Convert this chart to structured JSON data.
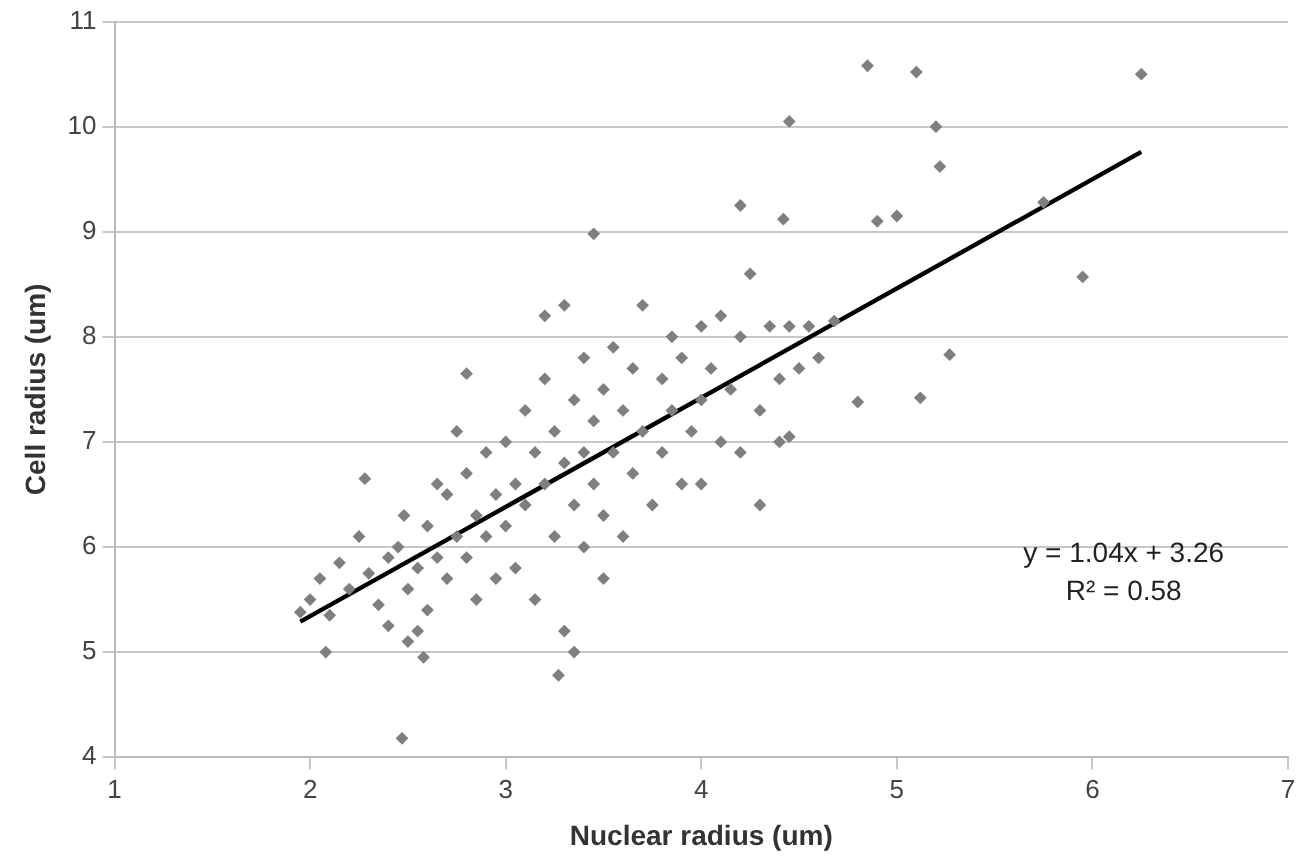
{
  "chart_data": {
    "type": "scatter",
    "xlabel": "Nuclear radius (um)",
    "ylabel": "Cell radius (um)",
    "xlim": [
      1,
      7
    ],
    "ylim": [
      4,
      11
    ],
    "xticks": [
      1,
      2,
      3,
      4,
      5,
      6,
      7
    ],
    "yticks": [
      4,
      5,
      6,
      7,
      8,
      9,
      10,
      11
    ],
    "grid": "y",
    "legend": false,
    "marker": "diamond",
    "annotations": [
      "y = 1.04x + 3.26",
      "R² = 0.58"
    ],
    "series": [
      {
        "color": "#7f7f7f",
        "x": [
          2.47,
          3.27,
          3.45,
          4.85,
          5.1,
          6.25,
          4.45,
          5.2,
          5.22,
          4.2,
          4.9,
          5.0,
          5.75,
          5.95,
          4.42,
          4.8,
          5.12,
          5.27,
          2.28,
          2.08,
          1.95,
          2.0,
          2.05,
          2.1,
          2.15,
          2.2,
          2.25,
          2.3,
          2.35,
          2.4,
          2.4,
          2.45,
          2.5,
          2.5,
          2.48,
          2.55,
          2.6,
          2.6,
          2.65,
          2.7,
          2.7,
          2.75,
          2.75,
          2.8,
          2.8,
          2.85,
          2.85,
          2.9,
          2.9,
          2.95,
          2.95,
          2.55,
          2.58,
          2.65,
          2.8,
          3.0,
          3.0,
          3.05,
          3.05,
          3.1,
          3.1,
          3.15,
          3.15,
          3.2,
          3.2,
          3.25,
          3.25,
          3.3,
          3.3,
          3.3,
          3.35,
          3.35,
          3.4,
          3.4,
          3.4,
          3.45,
          3.45,
          3.5,
          3.5,
          3.5,
          3.2,
          3.35,
          3.55,
          3.55,
          3.6,
          3.6,
          3.65,
          3.65,
          3.7,
          3.7,
          3.75,
          3.8,
          3.8,
          3.85,
          3.85,
          3.9,
          3.9,
          3.95,
          4.0,
          4.0,
          4.0,
          4.05,
          4.1,
          4.1,
          4.15,
          4.2,
          4.2,
          4.25,
          4.3,
          4.3,
          4.35,
          4.4,
          4.4,
          4.45,
          4.5,
          4.55,
          4.6,
          4.68,
          4.45
        ],
        "values": [
          4.18,
          4.78,
          8.98,
          10.58,
          10.52,
          10.5,
          10.05,
          10.0,
          9.62,
          9.25,
          9.1,
          9.15,
          9.28,
          8.57,
          9.12,
          7.38,
          7.42,
          7.83,
          6.65,
          5.0,
          5.38,
          5.5,
          5.7,
          5.35,
          5.85,
          5.6,
          6.1,
          5.75,
          5.45,
          5.9,
          5.25,
          6.0,
          5.6,
          5.1,
          6.3,
          5.8,
          6.2,
          5.4,
          5.9,
          6.5,
          5.7,
          6.1,
          7.1,
          6.7,
          5.9,
          6.3,
          5.5,
          6.9,
          6.1,
          6.5,
          5.7,
          5.2,
          4.95,
          6.6,
          7.65,
          7.0,
          6.2,
          6.6,
          5.8,
          7.3,
          6.4,
          6.9,
          5.5,
          7.6,
          6.6,
          7.1,
          6.1,
          8.3,
          6.8,
          5.2,
          7.4,
          6.4,
          7.8,
          6.9,
          6.0,
          7.2,
          6.6,
          7.5,
          6.3,
          5.7,
          8.2,
          5.0,
          7.9,
          6.9,
          7.3,
          6.1,
          7.7,
          6.7,
          8.3,
          7.1,
          6.4,
          7.6,
          6.9,
          8.0,
          7.3,
          6.6,
          7.8,
          7.1,
          8.1,
          7.4,
          6.6,
          7.7,
          8.2,
          7.0,
          7.5,
          8.0,
          6.9,
          8.6,
          7.3,
          6.4,
          8.1,
          7.6,
          7.0,
          8.1,
          7.7,
          8.1,
          7.8,
          8.15,
          7.05
        ]
      },
      {
        "type": "line",
        "color": "#000000",
        "marker": "none",
        "x": [
          1.95,
          6.25
        ],
        "values": [
          5.29,
          9.76
        ]
      }
    ]
  }
}
